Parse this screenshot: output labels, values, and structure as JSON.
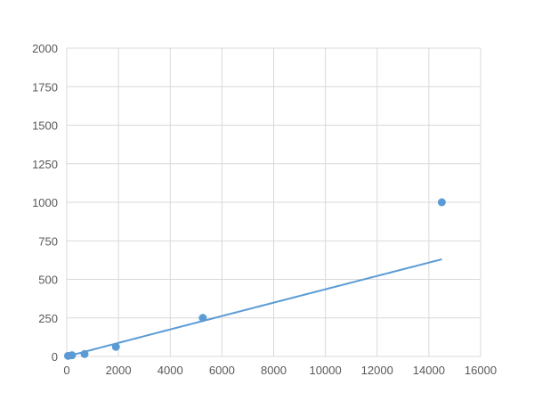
{
  "chart_data": {
    "type": "scatter",
    "title": "",
    "xlabel": "",
    "ylabel": "",
    "xlim": [
      0,
      16000
    ],
    "ylim": [
      0,
      2000
    ],
    "xticks": [
      0,
      2000,
      4000,
      6000,
      8000,
      10000,
      12000,
      14000,
      16000
    ],
    "yticks": [
      0,
      250,
      500,
      750,
      1000,
      1250,
      1500,
      1750,
      2000
    ],
    "grid": true,
    "color": "#5b9bd5",
    "series": [
      {
        "x": [
          50,
          200,
          690,
          1900,
          5260,
          14500
        ],
        "y": [
          3.9,
          7.8,
          15.6,
          62.5,
          250,
          1000
        ]
      }
    ],
    "trendline": "smooth"
  }
}
